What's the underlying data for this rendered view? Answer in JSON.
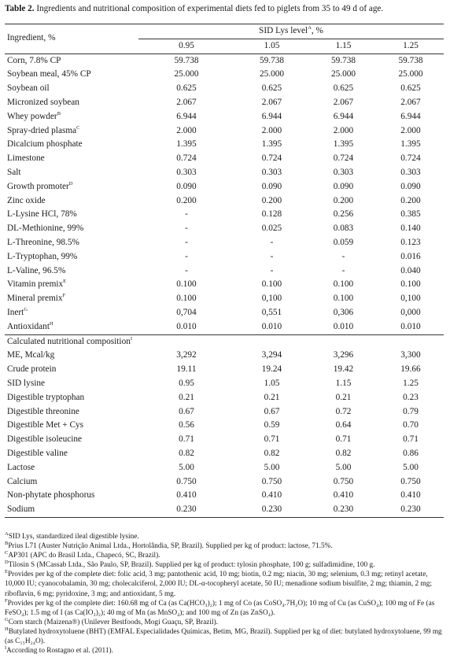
{
  "caption": {
    "label": "Table 2.",
    "text": " Ingredients and nutritional composition of experimental diets fed to piglets from 35 to 49 d of age."
  },
  "header": {
    "ingredient": "Ingredient, %",
    "level_title": "SID Lys level",
    "level_title_sup": "A",
    "level_title_suffix": ", %",
    "levels": [
      "0.95",
      "1.05",
      "1.15",
      "1.25"
    ]
  },
  "ingredients": [
    {
      "name": "Corn, 7.8% CP",
      "sup": "",
      "v": [
        "59.738",
        "59.738",
        "59.738",
        "59.738"
      ]
    },
    {
      "name": "Soybean meal, 45% CP",
      "sup": "",
      "v": [
        "25.000",
        "25.000",
        "25.000",
        "25.000"
      ]
    },
    {
      "name": "Soybean oil",
      "sup": "",
      "v": [
        "0.625",
        "0.625",
        "0.625",
        "0.625"
      ]
    },
    {
      "name": "Micronized soybean",
      "sup": "",
      "v": [
        "2.067",
        "2.067",
        "2.067",
        "2.067"
      ]
    },
    {
      "name": "Whey powder",
      "sup": "B",
      "v": [
        "6.944",
        "6.944",
        "6.944",
        "6.944"
      ]
    },
    {
      "name": "Spray-dried plasma",
      "sup": "C",
      "v": [
        "2.000",
        "2.000",
        "2.000",
        "2.000"
      ]
    },
    {
      "name": "Dicalcium phosphate",
      "sup": "",
      "v": [
        "1.395",
        "1.395",
        "1.395",
        "1.395"
      ]
    },
    {
      "name": "Limestone",
      "sup": "",
      "v": [
        "0.724",
        "0.724",
        "0.724",
        "0.724"
      ]
    },
    {
      "name": "Salt",
      "sup": "",
      "v": [
        "0.303",
        "0.303",
        "0.303",
        "0.303"
      ]
    },
    {
      "name": "Growth promoter",
      "sup": "D",
      "v": [
        "0.090",
        "0.090",
        "0.090",
        "0.090"
      ]
    },
    {
      "name": "Zinc oxide",
      "sup": "",
      "v": [
        "0.200",
        "0.200",
        "0.200",
        "0.200"
      ]
    },
    {
      "name": "L-Lysine HCl, 78%",
      "sup": "",
      "v": [
        "-",
        "0.128",
        "0.256",
        "0.385"
      ]
    },
    {
      "name": "DL-Methionine, 99%",
      "sup": "",
      "v": [
        "-",
        "0.025",
        "0.083",
        "0.140"
      ]
    },
    {
      "name": "L-Threonine, 98.5%",
      "sup": "",
      "v": [
        "-",
        "-",
        "0.059",
        "0.123"
      ]
    },
    {
      "name": "L-Tryptophan, 99%",
      "sup": "",
      "v": [
        "-",
        "-",
        "-",
        "0.016"
      ]
    },
    {
      "name": "L-Valine, 96.5%",
      "sup": "",
      "v": [
        "-",
        "-",
        "-",
        "0.040"
      ]
    },
    {
      "name": "Vitamin premix",
      "sup": "E",
      "v": [
        "0.100",
        "0.100",
        "0.100",
        "0.100"
      ]
    },
    {
      "name": "Mineral premix",
      "sup": "F",
      "v": [
        "0.100",
        "0,100",
        "0.100",
        "0,100"
      ]
    },
    {
      "name": "Inert",
      "sup": "G",
      "v": [
        "0,704",
        "0,551",
        "0,306",
        "0,000"
      ]
    },
    {
      "name": "Antioxidant",
      "sup": "H",
      "v": [
        "0.010",
        "0.010",
        "0.010",
        "0.010"
      ]
    }
  ],
  "calc_title": "Calculated nutritional composition",
  "calc_title_sup": "I",
  "calculated": [
    {
      "name": "ME, Mcal/kg",
      "v": [
        "3,292",
        "3,294",
        "3,296",
        "3,300"
      ]
    },
    {
      "name": "Crude protein",
      "v": [
        "19.11",
        "19.24",
        "19.42",
        "19.66"
      ]
    },
    {
      "name": "SID lysine",
      "v": [
        "0.95",
        "1.05",
        "1.15",
        "1.25"
      ]
    },
    {
      "name": "Digestible tryptophan",
      "v": [
        "0.21",
        "0.21",
        "0.21",
        "0.23"
      ]
    },
    {
      "name": "Digestible threonine",
      "v": [
        "0.67",
        "0.67",
        "0.72",
        "0.79"
      ]
    },
    {
      "name": "Digestible Met + Cys",
      "v": [
        "0.56",
        "0.59",
        "0.64",
        "0.70"
      ]
    },
    {
      "name": "Digestible isoleucine",
      "v": [
        "0.71",
        "0.71",
        "0.71",
        "0.71"
      ]
    },
    {
      "name": "Digestible valine",
      "v": [
        "0.82",
        "0.82",
        "0.82",
        "0.86"
      ]
    },
    {
      "name": "Lactose",
      "v": [
        "5.00",
        "5.00",
        "5.00",
        "5.00"
      ]
    },
    {
      "name": "Calcium",
      "v": [
        "0.750",
        "0.750",
        "0.750",
        "0.750"
      ]
    },
    {
      "name": "Non-phytate phosphorus",
      "v": [
        "0.410",
        "0.410",
        "0.410",
        "0.410"
      ]
    },
    {
      "name": "Sodium",
      "v": [
        "0.230",
        "0.230",
        "0.230",
        "0.230"
      ]
    }
  ],
  "footnotes": [
    {
      "mark": "A",
      "text": "SID Lys, standardized ileal digestible lysine."
    },
    {
      "mark": "B",
      "text": "Prius L71 (Auster Nutrição Animal Ltda., Hortolândia, SP, Brazil). Supplied per kg of product: lactose, 71.5%."
    },
    {
      "mark": "C",
      "text": "AP301 (APC do Brasil Ltda., Chapecó, SC, Brazil)."
    },
    {
      "mark": "D",
      "text": "Tilosin S (MCassab Ltda., São Paulo, SP, Brazil). Supplied per kg of product: tylosin phosphate, 100 g; sulfadimidine, 100 g."
    },
    {
      "mark": "E",
      "text": "Provides per kg of the complete diet: folic acid, 3 mg; pantothenic acid, 10 mg; biotin, 0.2 mg; niacin, 30 mg; selenium, 0.3 mg; retinyl acetate, 10,000 IU; cyanocobalamin, 30 mg; cholecalciferol, 2,000 IU; DL-α-tocopheryl acetate, 50 IU; menadione sodium bisulfite, 2 mg; thiamin, 2 mg; riboflavin, 6 mg; pyridoxine, 3 mg; and antioxidant, 5 mg."
    },
    {
      "mark": "F",
      "text": "Provides per kg of the complete diet: 160.68 mg of Ca (as Ca(HCO₃)₂); 1 mg of Co (as CoSO₄.7H₂O); 10 mg of Cu (as CuSO₄); 100 mg of Fe (as FeSO₄); 1.5 mg of I (as Ca(IO₃)₂); 40 mg of Mn (as MnSO₄); and 100 mg of Zn (as ZnSO₄)."
    },
    {
      "mark": "G",
      "text": "Corn starch (Maizena®) (Unilever Bestfoods, Mogi Guaçu, SP, Brazil)."
    },
    {
      "mark": "H",
      "text": "Butylated hydroxytoluene (BHT) (EMFAL Especialidades Químicas, Betim, MG, Brazil). Supplied per kg of diet: butylated hydroxytoluene, 99 mg (as C₁₅H₂₄O)."
    },
    {
      "mark": "I",
      "text": "According to Rostagno et al. (2011)."
    }
  ]
}
